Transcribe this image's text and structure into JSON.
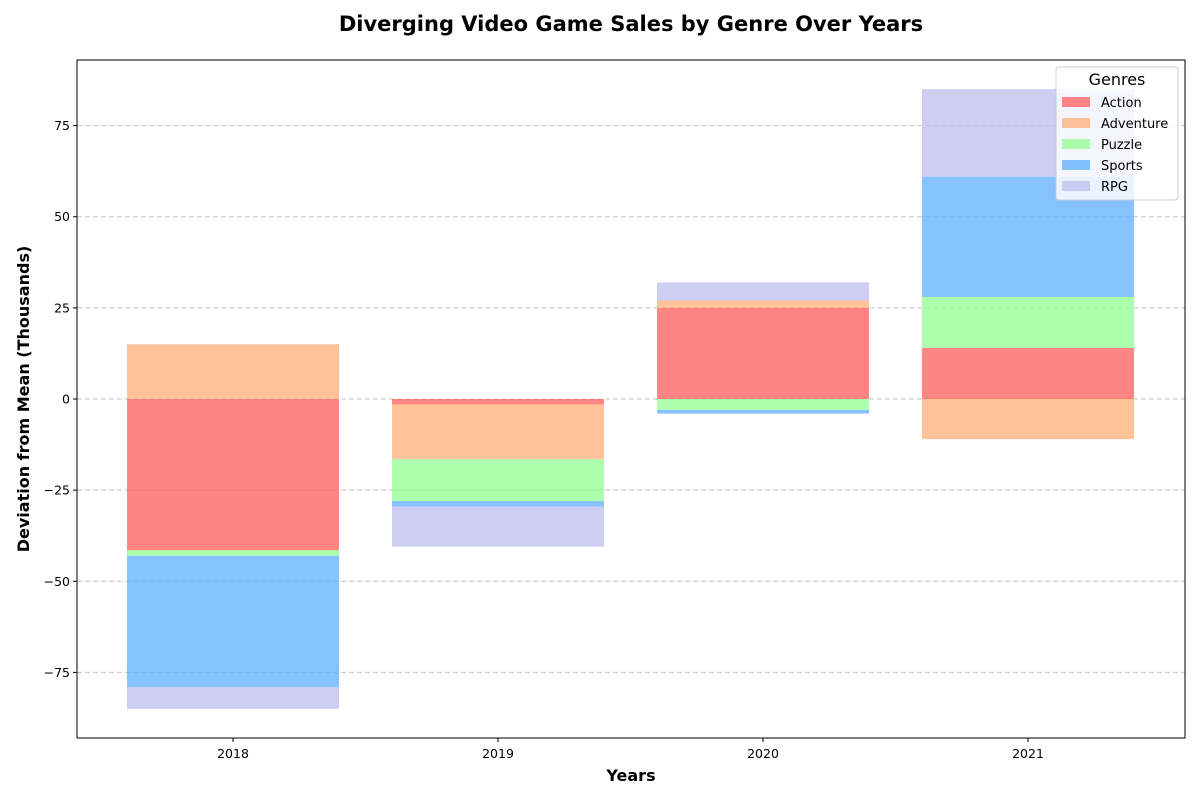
{
  "chart_data": {
    "type": "bar",
    "subtype": "diverging-stacked",
    "title": "Diverging Video Game Sales by Genre Over Years",
    "xlabel": "Years",
    "ylabel": "Deviation from Mean (Thousands)",
    "categories": [
      "2018",
      "2019",
      "2020",
      "2021"
    ],
    "ylim": [
      -93,
      93
    ],
    "yticks": [
      -75,
      -50,
      -25,
      0,
      25,
      50,
      75
    ],
    "ytick_labels": [
      "−75",
      "−50",
      "−25",
      "0",
      "25",
      "50",
      "75"
    ],
    "grid": "y-dashed",
    "legend": {
      "title": "Genres",
      "placement": "top-right"
    },
    "series": [
      {
        "name": "Action",
        "color": "#ff6666",
        "values": [
          -41.5,
          -1.5,
          25,
          14
        ]
      },
      {
        "name": "Adventure",
        "color": "#ffb380",
        "values": [
          15,
          -15,
          2,
          -11
        ]
      },
      {
        "name": "Puzzle",
        "color": "#99ff99",
        "values": [
          -1.5,
          -11.5,
          -3,
          14
        ]
      },
      {
        "name": "Sports",
        "color": "#66b3ff",
        "values": [
          -36,
          -1.5,
          -1,
          33
        ]
      },
      {
        "name": "RPG",
        "color": "#c2c2f0",
        "values": [
          -6,
          -11,
          5,
          24
        ]
      }
    ]
  }
}
